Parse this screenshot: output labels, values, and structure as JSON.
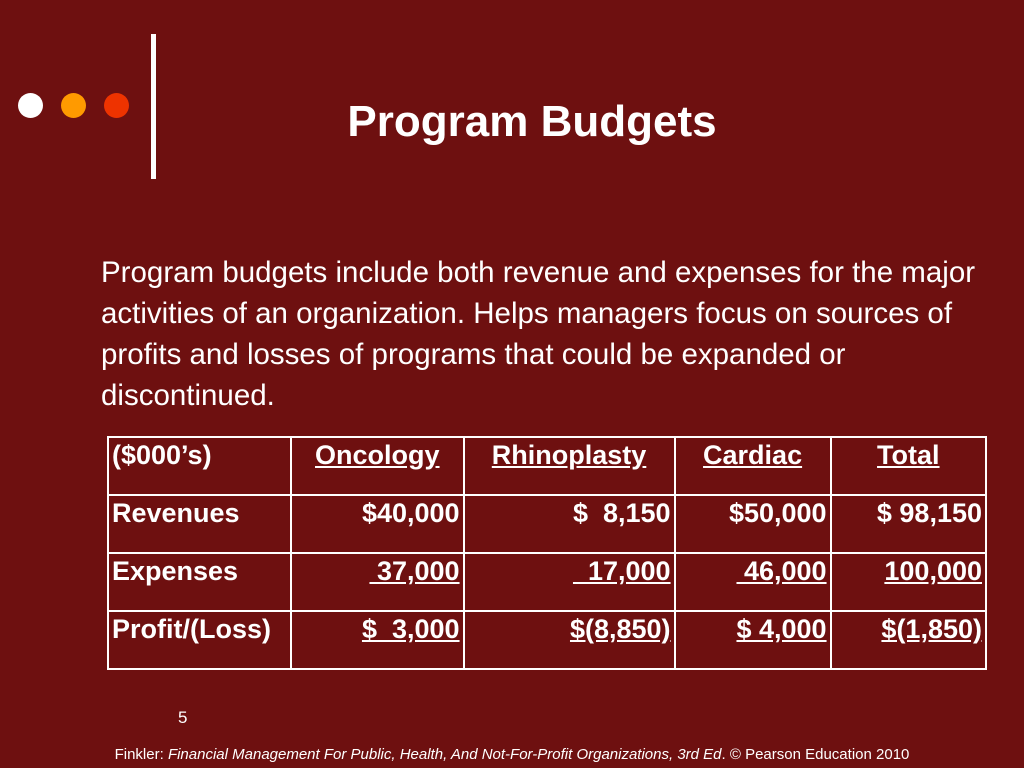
{
  "decor": {
    "dot_colors": [
      "#ffffff",
      "#ff9a00",
      "#ee3300"
    ],
    "bar_color": "#ffffff",
    "background": "#6e1010"
  },
  "slide": {
    "title": "Program Budgets",
    "body": "Program budgets include both revenue and expenses for the major activities of an organization. Helps managers focus on sources of profits and losses of programs that could be expanded or discontinued.",
    "page_number": "5"
  },
  "table": {
    "headers": [
      "($000’s)",
      "Oncology",
      "Rhinoplasty",
      "Cardiac",
      "Total"
    ],
    "rows": [
      {
        "label": "Revenues",
        "values": [
          "$40,000",
          "$  8,150",
          "$50,000",
          "$ 98,150"
        ]
      },
      {
        "label": "Expenses",
        "values": [
          " 37,000",
          "  17,000",
          " 46,000",
          "100,000"
        ]
      },
      {
        "label": "Profit/(Loss)",
        "values": [
          "$  3,000",
          "$(8,850)",
          "$ 4,000",
          "$(1,850)"
        ]
      }
    ]
  },
  "footer": {
    "prefix": "Finkler: ",
    "book_title": "Financial Management For Public, Health, And Not-For-Profit Organizations, 3rd Ed",
    "suffix": ". © Pearson Education 2010"
  }
}
